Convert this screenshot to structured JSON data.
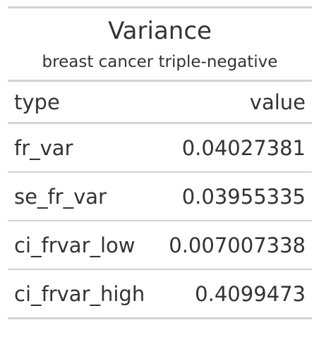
{
  "chart_data": {
    "type": "table",
    "title": "Variance",
    "subtitle": "breast cancer triple-negative",
    "columns": [
      "type",
      "value"
    ],
    "rows": [
      {
        "type": "fr_var",
        "value": "0.04027381"
      },
      {
        "type": "se_fr_var",
        "value": "0.03955335"
      },
      {
        "type": "ci_frvar_low",
        "value": "0.007007338"
      },
      {
        "type": "ci_frvar_high",
        "value": "0.4099473"
      }
    ]
  }
}
